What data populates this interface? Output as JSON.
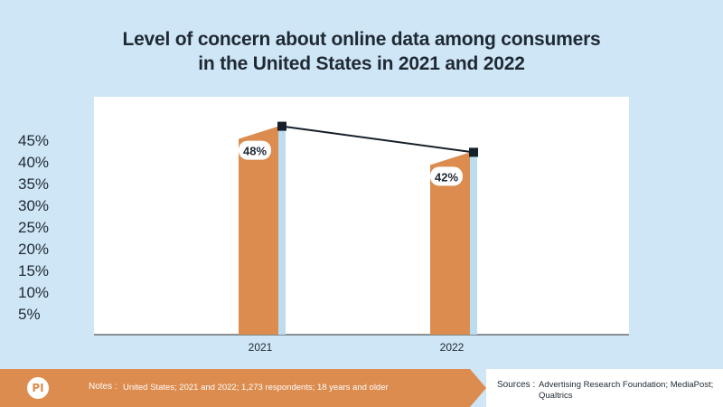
{
  "title_lines": [
    "Level of concern about online data among consumers",
    "in the United States in 2021 and 2022"
  ],
  "chart_data": {
    "type": "bar",
    "categories": [
      "2021",
      "2022"
    ],
    "values": [
      48,
      42
    ],
    "data_labels": [
      "48%",
      "42%"
    ],
    "yticks": [
      "5%",
      "10%",
      "15%",
      "20%",
      "25%",
      "30%",
      "35%",
      "40%",
      "45%"
    ],
    "ylim": [
      0,
      50
    ],
    "grid": false,
    "line_overlay": true,
    "bar_color": "#dc8c4e",
    "bar_shadow_color": "#bcdcef",
    "line_color": "#15202b"
  },
  "footer": {
    "logo_text": "PI",
    "notes_label": "Notes :",
    "notes_text": "United States; 2021 and 2022; 1,273 respondents; 18 years and older",
    "sources_label": "Sources :",
    "sources_text": "Advertising Research Foundation; MediaPost; Qualtrics"
  },
  "colors": {
    "background": "#cfe6f6",
    "plot_background": "#ffffff",
    "accent": "#dc8c4e"
  }
}
